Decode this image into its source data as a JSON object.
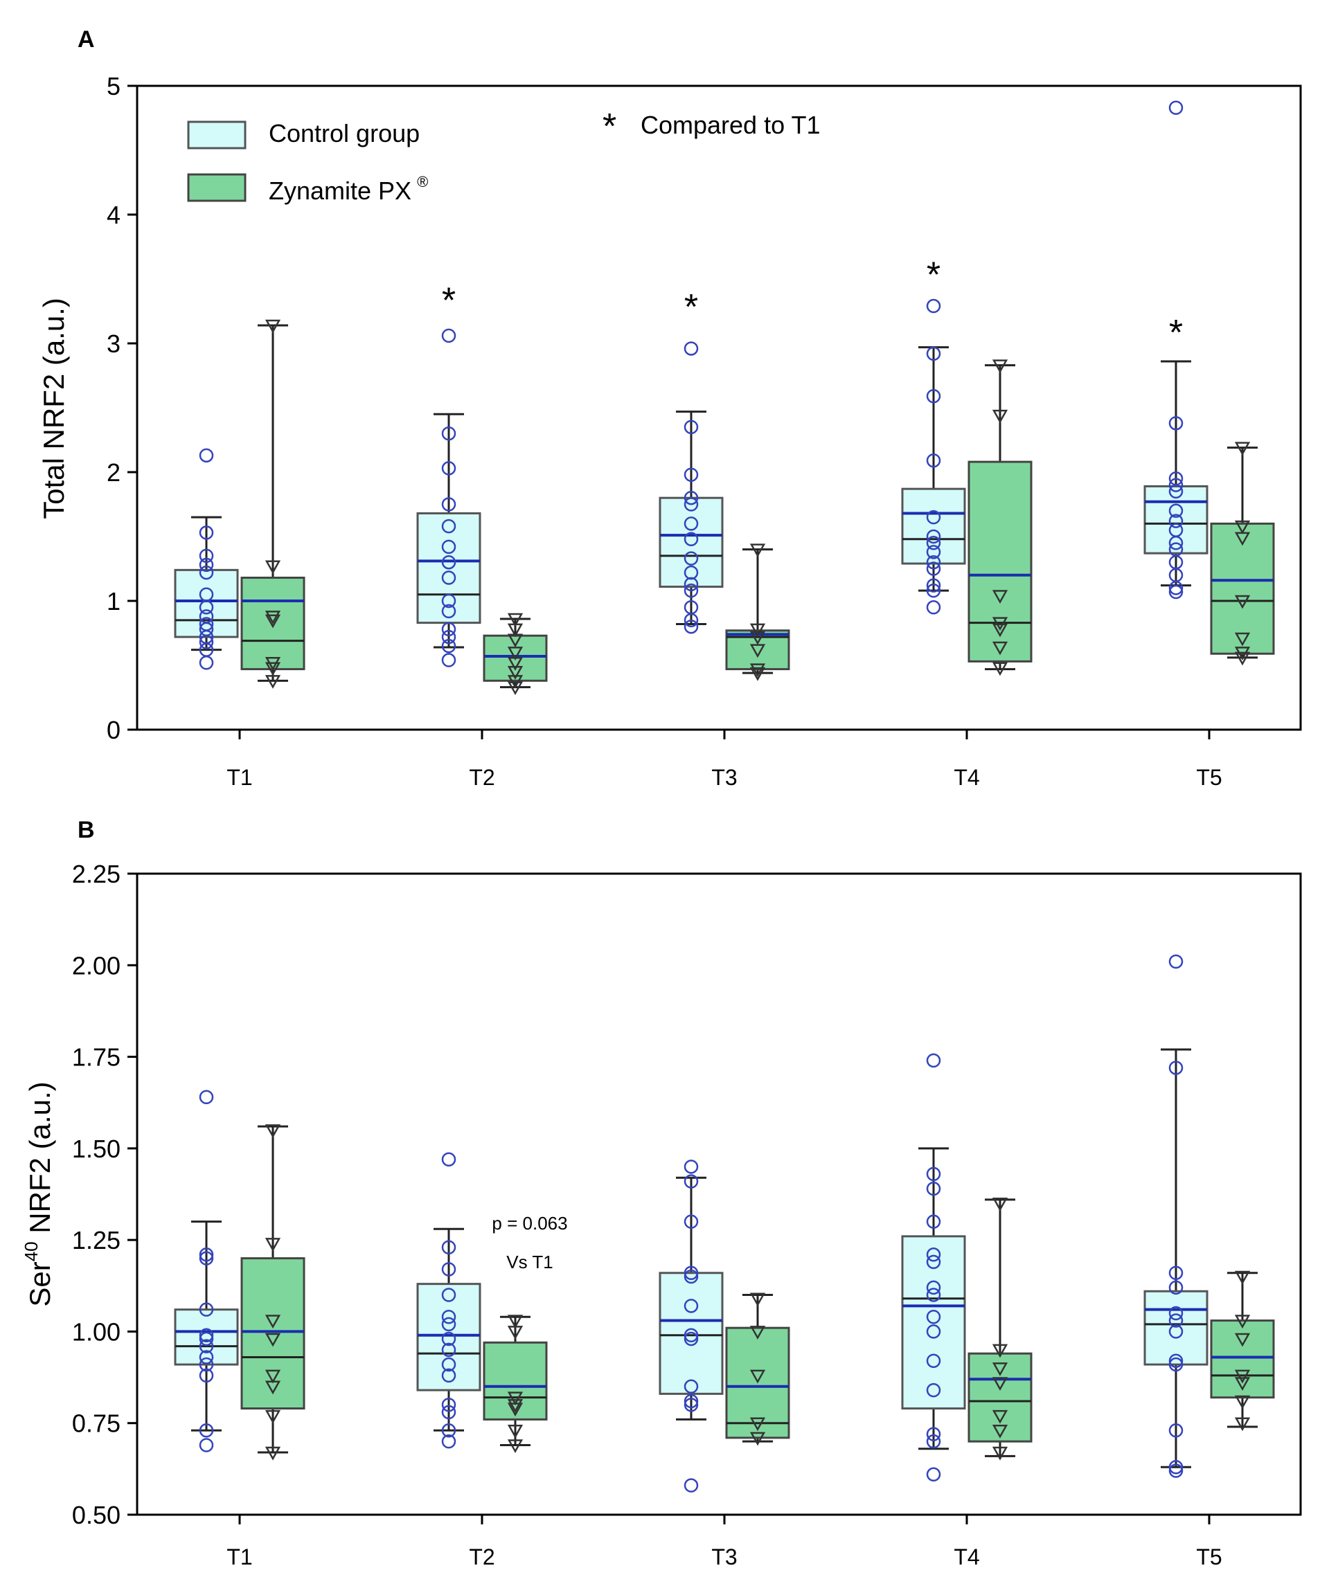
{
  "chart_data": [
    {
      "type": "box",
      "panel_label": "A",
      "ylabel": "Total NRF2 (a.u.)",
      "ylim": [
        0,
        5
      ],
      "yticks": [
        "0",
        "1",
        "2",
        "3",
        "4",
        "5"
      ],
      "categories": [
        "T1",
        "T2",
        "T3",
        "T4",
        "T5"
      ],
      "legend": {
        "position": "top-left",
        "entries": [
          {
            "name": "Control group",
            "color": "#d4fafa"
          },
          {
            "name": "Zynamite PX",
            "superscript": "®",
            "color": "#7fd69c"
          }
        ]
      },
      "annotation": {
        "symbol": "*",
        "text": "Compared to T1"
      },
      "significance_markers": [
        {
          "category": "T2",
          "series": "Control group",
          "symbol": "*",
          "y": 3.4
        },
        {
          "category": "T3",
          "series": "Control group",
          "symbol": "*",
          "y": 3.35
        },
        {
          "category": "T4",
          "series": "Control group",
          "symbol": "*",
          "y": 3.6
        },
        {
          "category": "T5",
          "series": "Control group",
          "symbol": "*",
          "y": 3.15
        }
      ],
      "series": [
        {
          "name": "Control group",
          "color": "#d4fafa",
          "boxes": [
            {
              "whisker_low": 0.62,
              "q1": 0.72,
              "median": 0.85,
              "q3": 1.24,
              "whisker_high": 1.65,
              "mean": 1.0,
              "points": [
                2.13,
                1.53,
                1.35,
                1.28,
                1.22,
                1.05,
                0.95,
                0.88,
                0.82,
                0.78,
                0.72,
                0.68,
                0.62,
                0.52
              ]
            },
            {
              "whisker_low": 0.64,
              "q1": 0.83,
              "median": 1.05,
              "q3": 1.68,
              "whisker_high": 2.45,
              "mean": 1.31,
              "points": [
                3.06,
                2.3,
                2.03,
                1.75,
                1.58,
                1.42,
                1.3,
                1.18,
                1.0,
                0.92,
                0.78,
                0.72,
                0.65,
                0.54
              ]
            },
            {
              "whisker_low": 0.82,
              "q1": 1.11,
              "median": 1.35,
              "q3": 1.8,
              "whisker_high": 2.47,
              "mean": 1.51,
              "points": [
                2.96,
                2.35,
                1.98,
                1.8,
                1.75,
                1.6,
                1.48,
                1.33,
                1.22,
                1.13,
                1.08,
                0.95,
                0.85,
                0.8
              ]
            },
            {
              "whisker_low": 1.08,
              "q1": 1.29,
              "median": 1.48,
              "q3": 1.87,
              "whisker_high": 2.97,
              "mean": 1.68,
              "points": [
                3.29,
                2.92,
                2.59,
                2.09,
                1.65,
                1.5,
                1.45,
                1.38,
                1.3,
                1.25,
                1.12,
                1.08,
                0.95
              ]
            },
            {
              "whisker_low": 1.12,
              "q1": 1.37,
              "median": 1.6,
              "q3": 1.89,
              "whisker_high": 2.86,
              "mean": 1.77,
              "points": [
                4.83,
                2.38,
                1.95,
                1.9,
                1.85,
                1.7,
                1.62,
                1.55,
                1.45,
                1.4,
                1.3,
                1.2,
                1.1,
                1.07
              ]
            }
          ]
        },
        {
          "name": "Zynamite PX",
          "color": "#7fd69c",
          "boxes": [
            {
              "whisker_low": 0.38,
              "q1": 0.47,
              "median": 0.69,
              "q3": 1.18,
              "whisker_high": 3.14,
              "mean": 1.0,
              "points": [
                3.14,
                1.27,
                0.88,
                0.85,
                0.52,
                0.48,
                0.38
              ]
            },
            {
              "whisker_low": 0.33,
              "q1": 0.38,
              "median": 0.57,
              "q3": 0.73,
              "whisker_high": 0.86,
              "mean": 0.57,
              "points": [
                0.86,
                0.78,
                0.7,
                0.6,
                0.52,
                0.45,
                0.38,
                0.33
              ]
            },
            {
              "whisker_low": 0.44,
              "q1": 0.47,
              "median": 0.72,
              "q3": 0.77,
              "whisker_high": 1.4,
              "mean": 0.74,
              "points": [
                1.4,
                0.78,
                0.72,
                0.62,
                0.47,
                0.44
              ]
            },
            {
              "whisker_low": 0.47,
              "q1": 0.53,
              "median": 0.83,
              "q3": 2.08,
              "whisker_high": 2.83,
              "mean": 1.2,
              "points": [
                2.83,
                2.44,
                1.04,
                0.83,
                0.78,
                0.64,
                0.48
              ]
            },
            {
              "whisker_low": 0.56,
              "q1": 0.59,
              "median": 1.0,
              "q3": 1.6,
              "whisker_high": 2.19,
              "mean": 1.16,
              "points": [
                2.19,
                1.58,
                1.49,
                1.0,
                0.71,
                0.6,
                0.56
              ]
            }
          ]
        }
      ]
    },
    {
      "type": "box",
      "panel_label": "B",
      "ylabel_main": "Ser",
      "ylabel_superscript": "40",
      "ylabel_rest": " NRF2 (a.u.)",
      "ylim": [
        0.5,
        2.25
      ],
      "yticks": [
        "0.50",
        "0.75",
        "1.00",
        "1.25",
        "1.50",
        "1.75",
        "2.00",
        "2.25"
      ],
      "categories": [
        "T1",
        "T2",
        "T3",
        "T4",
        "T5"
      ],
      "annotation": {
        "text_line1": "p = 0.063",
        "text_line2": "Vs T1",
        "category": "T2"
      },
      "series": [
        {
          "name": "Control group",
          "color": "#d4fafa",
          "boxes": [
            {
              "whisker_low": 0.73,
              "q1": 0.91,
              "median": 0.96,
              "q3": 1.06,
              "whisker_high": 1.3,
              "mean": 1.0,
              "points": [
                1.64,
                1.21,
                1.2,
                1.06,
                0.99,
                0.98,
                0.96,
                0.93,
                0.91,
                0.88,
                0.73,
                0.69
              ]
            },
            {
              "whisker_low": 0.73,
              "q1": 0.84,
              "median": 0.94,
              "q3": 1.13,
              "whisker_high": 1.28,
              "mean": 0.99,
              "points": [
                1.47,
                1.23,
                1.17,
                1.1,
                1.04,
                1.02,
                0.98,
                0.95,
                0.91,
                0.88,
                0.8,
                0.78,
                0.73,
                0.7
              ]
            },
            {
              "whisker_low": 0.76,
              "q1": 0.83,
              "median": 0.99,
              "q3": 1.16,
              "whisker_high": 1.42,
              "mean": 1.03,
              "points": [
                1.45,
                1.41,
                1.3,
                1.16,
                1.15,
                1.07,
                0.99,
                0.98,
                0.85,
                0.81,
                0.8,
                0.58
              ]
            },
            {
              "whisker_low": 0.68,
              "q1": 0.79,
              "median": 1.09,
              "q3": 1.26,
              "whisker_high": 1.5,
              "mean": 1.07,
              "points": [
                1.74,
                1.43,
                1.39,
                1.3,
                1.21,
                1.19,
                1.12,
                1.1,
                1.04,
                1.0,
                0.92,
                0.84,
                0.72,
                0.7,
                0.61
              ]
            },
            {
              "whisker_low": 0.63,
              "q1": 0.91,
              "median": 1.02,
              "q3": 1.11,
              "whisker_high": 1.77,
              "mean": 1.06,
              "points": [
                2.01,
                1.72,
                1.16,
                1.12,
                1.05,
                1.03,
                1.0,
                0.92,
                0.91,
                0.73,
                0.63,
                0.62
              ]
            }
          ]
        },
        {
          "name": "Zynamite PX",
          "color": "#7fd69c",
          "boxes": [
            {
              "whisker_low": 0.67,
              "q1": 0.79,
              "median": 0.93,
              "q3": 1.2,
              "whisker_high": 1.56,
              "mean": 1.0,
              "points": [
                1.55,
                1.24,
                1.03,
                0.98,
                0.88,
                0.85,
                0.77,
                0.67
              ]
            },
            {
              "whisker_low": 0.69,
              "q1": 0.76,
              "median": 0.82,
              "q3": 0.97,
              "whisker_high": 1.04,
              "mean": 0.85,
              "points": [
                1.03,
                1.0,
                0.82,
                0.8,
                0.79,
                0.73,
                0.69
              ]
            },
            {
              "whisker_low": 0.7,
              "q1": 0.71,
              "median": 0.75,
              "q3": 1.01,
              "whisker_high": 1.1,
              "mean": 0.85,
              "points": [
                1.09,
                1.0,
                0.88,
                0.75,
                0.71
              ]
            },
            {
              "whisker_low": 0.66,
              "q1": 0.7,
              "median": 0.81,
              "q3": 0.94,
              "whisker_high": 1.36,
              "mean": 0.87,
              "points": [
                1.35,
                0.95,
                0.9,
                0.86,
                0.77,
                0.73,
                0.67
              ]
            },
            {
              "whisker_low": 0.74,
              "q1": 0.82,
              "median": 0.88,
              "q3": 1.03,
              "whisker_high": 1.16,
              "mean": 0.93,
              "points": [
                1.15,
                1.03,
                0.98,
                0.88,
                0.86,
                0.81,
                0.75
              ]
            }
          ]
        }
      ]
    }
  ]
}
